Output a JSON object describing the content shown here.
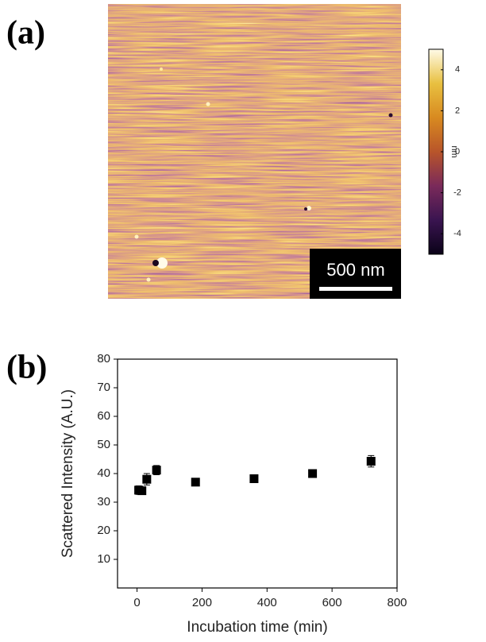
{
  "chart_data": [
    {
      "type": "image",
      "panel_label": "(a)",
      "scale_bar": "500 nm",
      "colorbar_label": "nm",
      "clim": [
        -5,
        5
      ],
      "colorbar_ticks": [
        -4,
        -2,
        0,
        2,
        4
      ],
      "colormap": [
        "#0a0218",
        "#3a1450",
        "#7a2a5a",
        "#b8552a",
        "#d88a20",
        "#e8c040",
        "#fffbe8"
      ]
    },
    {
      "type": "scatter",
      "panel_label": "(b)",
      "xlabel": "Incubation time (min)",
      "ylabel": "Scattered Intensity (A.U.)",
      "x": [
        5,
        15,
        30,
        60,
        180,
        360,
        540,
        720
      ],
      "values": [
        34.2,
        34,
        38,
        41.2,
        37,
        38.2,
        40,
        44.3
      ],
      "errors": [
        1.5,
        1.2,
        2,
        1.6,
        0.8,
        0.8,
        0.8,
        2
      ],
      "color": "#000000",
      "xlim": [
        -60,
        800
      ],
      "xticks": [
        0,
        200,
        400,
        600,
        800
      ],
      "ylim": [
        0,
        80
      ],
      "yticks": [
        10,
        20,
        30,
        40,
        50,
        60,
        70,
        80
      ]
    }
  ]
}
